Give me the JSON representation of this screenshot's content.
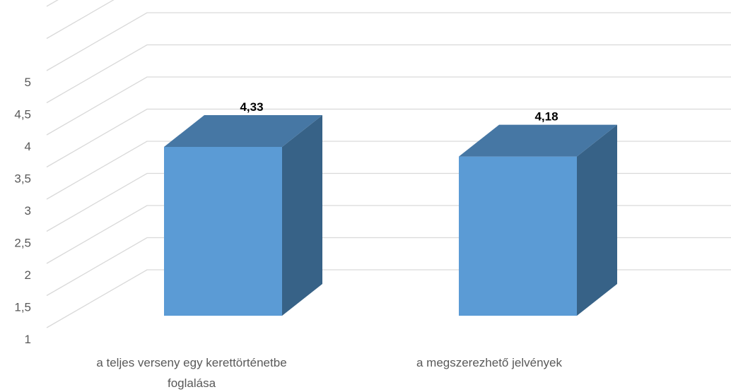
{
  "chart_data": {
    "type": "bar",
    "categories": [
      "a teljes verseny egy kerettörténetbe foglalása",
      "a megszerezhető jelvények"
    ],
    "category_lines": [
      [
        "a teljes verseny egy kerettörténetbe",
        "foglalása"
      ],
      [
        "a megszerezhető jelvények"
      ]
    ],
    "values": [
      4.33,
      4.18
    ],
    "data_labels": [
      "4,33",
      "4,18"
    ],
    "title": "",
    "xlabel": "",
    "ylabel": "",
    "ylim": [
      1,
      5
    ],
    "yticks": [
      1,
      1.5,
      2,
      2.5,
      3,
      3.5,
      4,
      4.5,
      5
    ],
    "ytick_labels": [
      "1",
      "1,5",
      "2",
      "2,5",
      "3",
      "3,5",
      "4",
      "4,5",
      "5"
    ],
    "grid": true,
    "style": "3d-column",
    "colors": {
      "bar_front": "#5b9bd5",
      "bar_top": "#4677a4",
      "bar_side": "#376287",
      "grid": "#d9d9d9",
      "text": "#595959"
    }
  }
}
